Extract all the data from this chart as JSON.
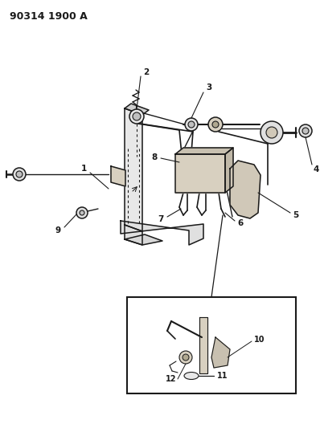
{
  "title": "90314 1900 A",
  "bg_color": "#ffffff",
  "line_color": "#1a1a1a",
  "figsize": [
    3.98,
    5.33
  ],
  "dpi": 100,
  "label_fs": 7.5,
  "title_fs": 9,
  "lw": 1.1
}
